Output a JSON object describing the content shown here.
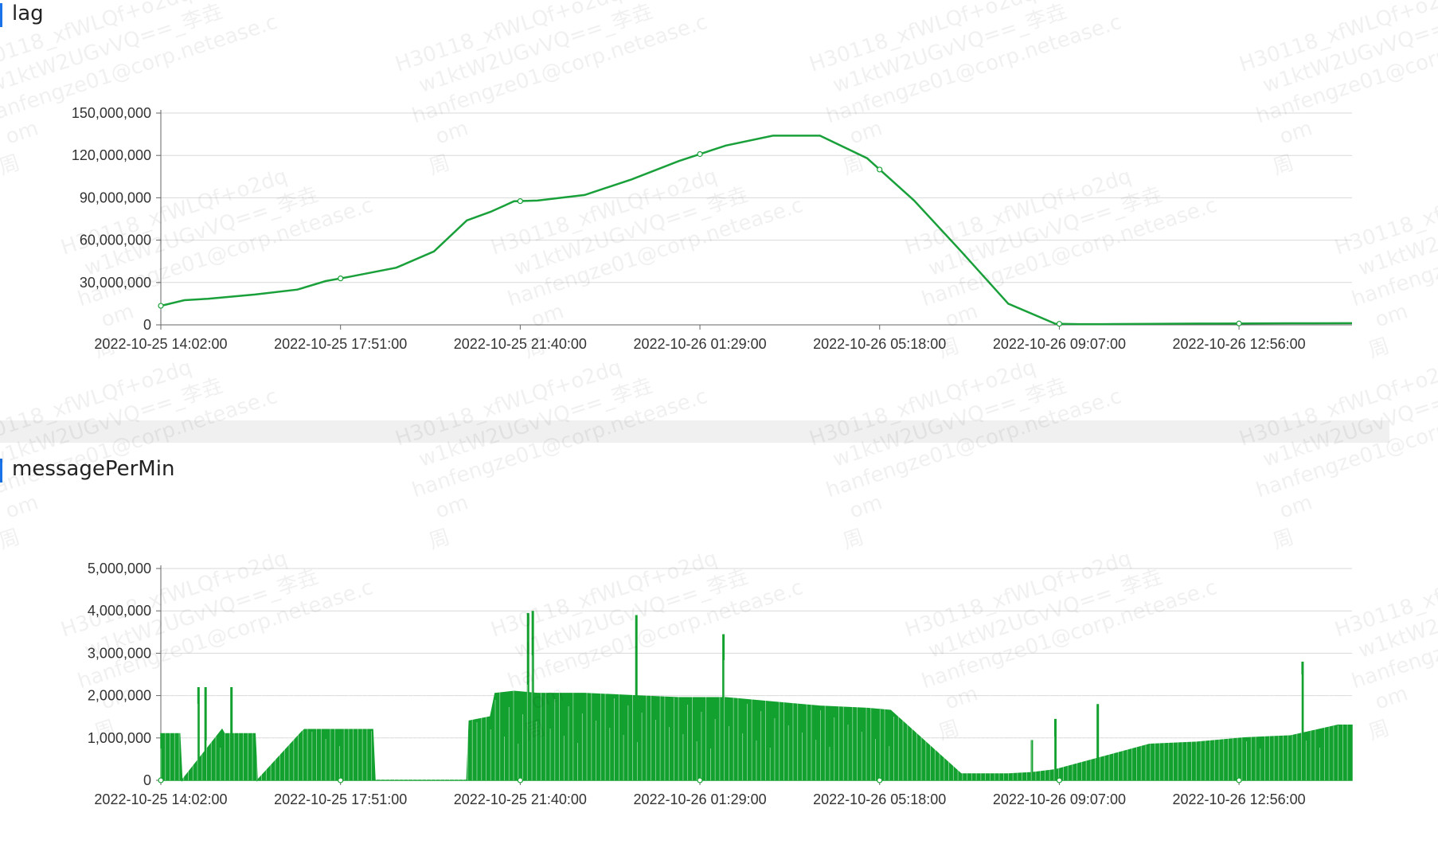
{
  "panels": [
    {
      "title": "lag",
      "chart_data": {
        "type": "line",
        "title": "lag",
        "color": "#1aa03a",
        "x_tick_labels": [
          "2022-10-25 14:02:00",
          "2022-10-25 17:51:00",
          "2022-10-25 21:40:00",
          "2022-10-26 01:29:00",
          "2022-10-26 05:18:00",
          "2022-10-26 09:07:00",
          "2022-10-26 12:56:00"
        ],
        "y_tick_labels": [
          "0",
          "30,000,000",
          "60,000,000",
          "90,000,000",
          "120,000,000",
          "150,000,000"
        ],
        "ylim": [
          0,
          150000000
        ],
        "xlim_hours": [
          0,
          25.3
        ],
        "series": [
          {
            "x_hours": [
              0,
              0.5,
              1,
              2,
              2.9,
              3.5,
              4,
              5,
              5.8,
              6.5,
              7,
              7.5,
              8,
              9,
              10,
              11,
              12,
              13,
              14,
              15,
              16,
              17,
              18,
              19,
              19.5,
              20,
              21,
              22,
              23,
              24,
              25.3
            ],
            "values": [
              13500000,
              17500000,
              18500000,
              21500000,
              25000000,
              31000000,
              34000000,
              40500000,
              52000000,
              74000000,
              80000000,
              87500000,
              88000000,
              92000000,
              103000000,
              116000000,
              127000000,
              134000000,
              134000000,
              118000000,
              88000000,
              52000000,
              15000000,
              800000,
              500000,
              500000,
              700000,
              900000,
              1000000,
              1100000,
              1200000
            ]
          }
        ],
        "grid": true,
        "legend": "none"
      }
    },
    {
      "title": "messagePerMin",
      "chart_data": {
        "type": "area",
        "title": "messagePerMin",
        "color": "#12a12e",
        "x_tick_labels": [
          "2022-10-25 14:02:00",
          "2022-10-25 17:51:00",
          "2022-10-25 21:40:00",
          "2022-10-26 01:29:00",
          "2022-10-26 05:18:00",
          "2022-10-26 09:07:00",
          "2022-10-26 12:56:00"
        ],
        "y_tick_labels": [
          "0",
          "1,000,000",
          "2,000,000",
          "3,000,000",
          "4,000,000",
          "5,000,000"
        ],
        "ylim": [
          0,
          5000000
        ],
        "xlim_hours": [
          0,
          25.3
        ],
        "series": [
          {
            "x_hours": [
              0,
              0.4,
              0.45,
              1.3,
              1.35,
              2.0,
              2.05,
              3.0,
              3.05,
              4.5,
              4.55,
              4.6,
              4.9,
              5.0,
              6.5,
              6.55,
              7.0,
              7.1,
              7.5,
              8.0,
              9,
              10,
              11,
              12,
              13,
              14,
              15,
              15.5,
              15.6,
              17,
              18,
              18.5,
              19,
              20,
              21,
              22,
              23,
              24,
              25,
              25.3
            ],
            "values": [
              1100000,
              1100000,
              0,
              1200000,
              1100000,
              1100000,
              0,
              1150000,
              1200000,
              1200000,
              0,
              0,
              0,
              0,
              0,
              1400000,
              1500000,
              2050000,
              2100000,
              2050000,
              2050000,
              2000000,
              1950000,
              1950000,
              1850000,
              1750000,
              1700000,
              1650000,
              1550000,
              150000,
              150000,
              180000,
              250000,
              550000,
              850000,
              900000,
              1000000,
              1050000,
              1300000,
              1300000
            ]
          }
        ],
        "spikes": [
          {
            "x_hours": 0.8,
            "value": 2200000
          },
          {
            "x_hours": 0.95,
            "value": 2200000
          },
          {
            "x_hours": 1.5,
            "value": 2200000
          },
          {
            "x_hours": 7.8,
            "value": 3950000
          },
          {
            "x_hours": 7.9,
            "value": 4000000
          },
          {
            "x_hours": 10.1,
            "value": 3900000
          },
          {
            "x_hours": 11.95,
            "value": 3450000
          },
          {
            "x_hours": 18.5,
            "value": 950000
          },
          {
            "x_hours": 19.0,
            "value": 1450000
          },
          {
            "x_hours": 19.9,
            "value": 1800000
          },
          {
            "x_hours": 24.25,
            "value": 2800000
          }
        ],
        "grid": true,
        "legend": "none"
      }
    }
  ],
  "watermark": {
    "lines": [
      "H30118_xfWLQf+o2dq",
      "w1ktW2UGvVQ==_李垚",
      "hanfengze01@corp.netease.c",
      "om",
      "周"
    ]
  }
}
